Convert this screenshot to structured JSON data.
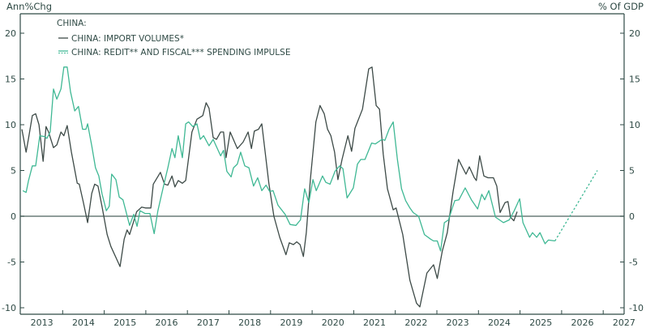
{
  "chart_data": {
    "type": "line",
    "title": "CHINA:",
    "left_axis_label": "Ann%Chg",
    "right_axis_label": "% Of GDP",
    "xlim": [
      2013,
      2027.5
    ],
    "ylim": [
      -10.5,
      22
    ],
    "yticks": [
      20,
      15,
      10,
      5,
      0,
      -5,
      -10
    ],
    "ytick_labels": [
      "20",
      "15",
      "10",
      "5",
      "0",
      "-5",
      "-10"
    ],
    "xtick_labels": [
      "2013",
      "2014",
      "2015",
      "2016",
      "2017",
      "2018",
      "2019",
      "2020",
      "2021",
      "2022",
      "2023",
      "2024",
      "2025",
      "2026",
      "2027"
    ],
    "zero_line": true,
    "grid": false,
    "legend_position": "top-left",
    "colors": {
      "import": "#3d4a47",
      "impulse": "#3fb894",
      "axis": "#2f4a45",
      "zero": "#6a7d78"
    },
    "series": [
      {
        "name": "CHINA: IMPORT VOLUMES*",
        "style": "solid",
        "points": [
          [
            2013.02,
            9.5
          ],
          [
            2013.12,
            7.0
          ],
          [
            2013.18,
            8.5
          ],
          [
            2013.27,
            11.0
          ],
          [
            2013.35,
            11.2
          ],
          [
            2013.43,
            10.0
          ],
          [
            2013.53,
            6.0
          ],
          [
            2013.6,
            9.8
          ],
          [
            2013.66,
            9.2
          ],
          [
            2013.78,
            7.5
          ],
          [
            2013.86,
            7.8
          ],
          [
            2013.96,
            9.2
          ],
          [
            2014.03,
            8.8
          ],
          [
            2014.11,
            9.9
          ],
          [
            2014.21,
            7.0
          ],
          [
            2014.35,
            3.6
          ],
          [
            2014.4,
            3.5
          ],
          [
            2014.5,
            1.5
          ],
          [
            2014.6,
            -0.7
          ],
          [
            2014.7,
            2.5
          ],
          [
            2014.77,
            3.5
          ],
          [
            2014.85,
            3.3
          ],
          [
            2014.95,
            1.0
          ],
          [
            2015.07,
            -2.0
          ],
          [
            2015.16,
            -3.3
          ],
          [
            2015.28,
            -4.5
          ],
          [
            2015.38,
            -5.5
          ],
          [
            2015.48,
            -2.5
          ],
          [
            2015.55,
            -1.5
          ],
          [
            2015.61,
            -2.0
          ],
          [
            2015.78,
            0.5
          ],
          [
            2015.9,
            1.0
          ],
          [
            2015.99,
            0.9
          ],
          [
            2016.12,
            0.9
          ],
          [
            2016.18,
            3.5
          ],
          [
            2016.35,
            4.8
          ],
          [
            2016.45,
            3.5
          ],
          [
            2016.53,
            3.4
          ],
          [
            2016.63,
            4.4
          ],
          [
            2016.7,
            3.2
          ],
          [
            2016.78,
            3.9
          ],
          [
            2016.88,
            3.6
          ],
          [
            2016.96,
            3.9
          ],
          [
            2017.11,
            9.2
          ],
          [
            2017.23,
            10.6
          ],
          [
            2017.37,
            11.0
          ],
          [
            2017.45,
            12.4
          ],
          [
            2017.52,
            11.8
          ],
          [
            2017.62,
            8.6
          ],
          [
            2017.7,
            8.4
          ],
          [
            2017.8,
            9.2
          ],
          [
            2017.87,
            9.2
          ],
          [
            2017.93,
            6.4
          ],
          [
            2018.03,
            9.2
          ],
          [
            2018.2,
            7.4
          ],
          [
            2018.34,
            8.1
          ],
          [
            2018.46,
            9.2
          ],
          [
            2018.54,
            7.4
          ],
          [
            2018.61,
            9.3
          ],
          [
            2018.71,
            9.5
          ],
          [
            2018.79,
            10.1
          ],
          [
            2018.96,
            3.6
          ],
          [
            2019.08,
            0.0
          ],
          [
            2019.22,
            -2.3
          ],
          [
            2019.37,
            -4.2
          ],
          [
            2019.45,
            -2.9
          ],
          [
            2019.55,
            -3.1
          ],
          [
            2019.63,
            -2.8
          ],
          [
            2019.71,
            -3.1
          ],
          [
            2019.79,
            -4.4
          ],
          [
            2019.86,
            -1.8
          ],
          [
            2019.96,
            4.1
          ],
          [
            2020.09,
            10.3
          ],
          [
            2020.19,
            12.1
          ],
          [
            2020.29,
            11.2
          ],
          [
            2020.37,
            9.5
          ],
          [
            2020.45,
            8.8
          ],
          [
            2020.54,
            7.0
          ],
          [
            2020.62,
            4.0
          ],
          [
            2020.72,
            6.2
          ],
          [
            2020.86,
            8.8
          ],
          [
            2020.95,
            7.1
          ],
          [
            2021.03,
            9.6
          ],
          [
            2021.21,
            11.7
          ],
          [
            2021.36,
            16.1
          ],
          [
            2021.44,
            16.3
          ],
          [
            2021.54,
            12.1
          ],
          [
            2021.62,
            11.7
          ],
          [
            2021.71,
            6.8
          ],
          [
            2021.81,
            3.0
          ],
          [
            2021.95,
            0.7
          ],
          [
            2022.02,
            0.9
          ],
          [
            2022.18,
            -2.0
          ],
          [
            2022.35,
            -7.0
          ],
          [
            2022.51,
            -9.5
          ],
          [
            2022.59,
            -9.9
          ],
          [
            2022.76,
            -6.2
          ],
          [
            2022.92,
            -5.3
          ],
          [
            2023.01,
            -6.8
          ],
          [
            2023.13,
            -3.8
          ],
          [
            2023.25,
            -1.8
          ],
          [
            2023.39,
            2.7
          ],
          [
            2023.52,
            6.2
          ],
          [
            2023.7,
            4.6
          ],
          [
            2023.78,
            5.4
          ],
          [
            2023.9,
            4.2
          ],
          [
            2023.95,
            3.9
          ],
          [
            2024.03,
            6.6
          ],
          [
            2024.13,
            4.4
          ],
          [
            2024.23,
            4.2
          ],
          [
            2024.36,
            4.2
          ],
          [
            2024.44,
            3.3
          ],
          [
            2024.52,
            0.4
          ],
          [
            2024.64,
            1.5
          ],
          [
            2024.71,
            1.6
          ],
          [
            2024.77,
            -0.1
          ],
          [
            2024.85,
            -0.5
          ],
          [
            2024.93,
            0.5
          ]
        ]
      },
      {
        "name": "CHINA: REDIT** AND FISCAL*** SPENDING IMPULSE",
        "style": "solid-with-dashed-projection",
        "points": [
          [
            2013.04,
            2.8
          ],
          [
            2013.12,
            2.6
          ],
          [
            2013.18,
            3.9
          ],
          [
            2013.27,
            5.5
          ],
          [
            2013.35,
            5.5
          ],
          [
            2013.45,
            8.8
          ],
          [
            2013.57,
            8.7
          ],
          [
            2013.62,
            8.5
          ],
          [
            2013.7,
            9.2
          ],
          [
            2013.78,
            13.9
          ],
          [
            2013.86,
            12.8
          ],
          [
            2013.96,
            13.9
          ],
          [
            2014.03,
            16.3
          ],
          [
            2014.11,
            16.3
          ],
          [
            2014.19,
            13.6
          ],
          [
            2014.29,
            11.5
          ],
          [
            2014.38,
            12.0
          ],
          [
            2014.48,
            9.5
          ],
          [
            2014.56,
            9.5
          ],
          [
            2014.6,
            10.1
          ],
          [
            2014.7,
            7.7
          ],
          [
            2014.79,
            5.3
          ],
          [
            2014.87,
            4.4
          ],
          [
            2014.95,
            2.4
          ],
          [
            2015.05,
            0.6
          ],
          [
            2015.12,
            1.1
          ],
          [
            2015.18,
            4.6
          ],
          [
            2015.28,
            4.0
          ],
          [
            2015.36,
            2.1
          ],
          [
            2015.45,
            1.8
          ],
          [
            2015.61,
            -1.0
          ],
          [
            2015.71,
            0.2
          ],
          [
            2015.79,
            -1.1
          ],
          [
            2015.86,
            0.6
          ],
          [
            2015.98,
            0.3
          ],
          [
            2016.1,
            0.3
          ],
          [
            2016.2,
            -1.9
          ],
          [
            2016.29,
            0.6
          ],
          [
            2016.43,
            3.4
          ],
          [
            2016.53,
            5.3
          ],
          [
            2016.63,
            7.4
          ],
          [
            2016.7,
            6.4
          ],
          [
            2016.78,
            8.8
          ],
          [
            2016.88,
            6.4
          ],
          [
            2016.96,
            10.1
          ],
          [
            2017.03,
            10.3
          ],
          [
            2017.13,
            9.8
          ],
          [
            2017.23,
            10.1
          ],
          [
            2017.31,
            8.4
          ],
          [
            2017.39,
            8.8
          ],
          [
            2017.52,
            7.7
          ],
          [
            2017.62,
            8.4
          ],
          [
            2017.8,
            6.6
          ],
          [
            2017.87,
            7.2
          ],
          [
            2017.95,
            4.9
          ],
          [
            2018.05,
            4.3
          ],
          [
            2018.11,
            5.3
          ],
          [
            2018.2,
            5.7
          ],
          [
            2018.28,
            7.0
          ],
          [
            2018.38,
            5.5
          ],
          [
            2018.48,
            5.3
          ],
          [
            2018.59,
            3.3
          ],
          [
            2018.69,
            4.2
          ],
          [
            2018.79,
            2.8
          ],
          [
            2018.89,
            3.4
          ],
          [
            2018.98,
            2.7
          ],
          [
            2019.06,
            2.8
          ],
          [
            2019.18,
            1.2
          ],
          [
            2019.35,
            0.2
          ],
          [
            2019.47,
            -0.9
          ],
          [
            2019.61,
            -1.0
          ],
          [
            2019.72,
            -0.4
          ],
          [
            2019.82,
            3.0
          ],
          [
            2019.92,
            1.5
          ],
          [
            2020.02,
            4.0
          ],
          [
            2020.1,
            2.8
          ],
          [
            2020.25,
            4.4
          ],
          [
            2020.33,
            3.7
          ],
          [
            2020.43,
            3.5
          ],
          [
            2020.55,
            4.9
          ],
          [
            2020.66,
            5.5
          ],
          [
            2020.74,
            5.2
          ],
          [
            2020.84,
            2.0
          ],
          [
            2020.99,
            3.1
          ],
          [
            2021.09,
            5.7
          ],
          [
            2021.17,
            6.2
          ],
          [
            2021.27,
            6.2
          ],
          [
            2021.43,
            8.0
          ],
          [
            2021.52,
            7.9
          ],
          [
            2021.68,
            8.4
          ],
          [
            2021.75,
            8.3
          ],
          [
            2021.85,
            9.5
          ],
          [
            2021.95,
            10.3
          ],
          [
            2022.05,
            6.2
          ],
          [
            2022.15,
            3.0
          ],
          [
            2022.25,
            1.7
          ],
          [
            2022.35,
            0.9
          ],
          [
            2022.43,
            0.4
          ],
          [
            2022.56,
            0.0
          ],
          [
            2022.7,
            -2.0
          ],
          [
            2022.85,
            -2.5
          ],
          [
            2022.92,
            -2.7
          ],
          [
            2023.01,
            -2.7
          ],
          [
            2023.09,
            -3.8
          ],
          [
            2023.18,
            -0.7
          ],
          [
            2023.28,
            -0.4
          ],
          [
            2023.37,
            0.9
          ],
          [
            2023.43,
            1.7
          ],
          [
            2023.53,
            1.8
          ],
          [
            2023.68,
            3.1
          ],
          [
            2023.83,
            1.8
          ],
          [
            2023.98,
            0.8
          ],
          [
            2024.08,
            2.4
          ],
          [
            2024.15,
            1.8
          ],
          [
            2024.25,
            2.8
          ],
          [
            2024.41,
            -0.1
          ],
          [
            2024.6,
            -0.7
          ],
          [
            2024.74,
            -0.4
          ],
          [
            2024.86,
            0.6
          ],
          [
            2024.99,
            1.9
          ],
          [
            2025.07,
            -0.7
          ],
          [
            2025.23,
            -2.3
          ],
          [
            2025.3,
            -1.8
          ],
          [
            2025.4,
            -2.3
          ],
          [
            2025.48,
            -1.8
          ],
          [
            2025.6,
            -3.0
          ],
          [
            2025.68,
            -2.6
          ],
          [
            2025.84,
            -2.7
          ]
        ],
        "projection": [
          [
            2025.84,
            -2.7
          ],
          [
            2026.86,
            5.0
          ]
        ]
      }
    ]
  }
}
